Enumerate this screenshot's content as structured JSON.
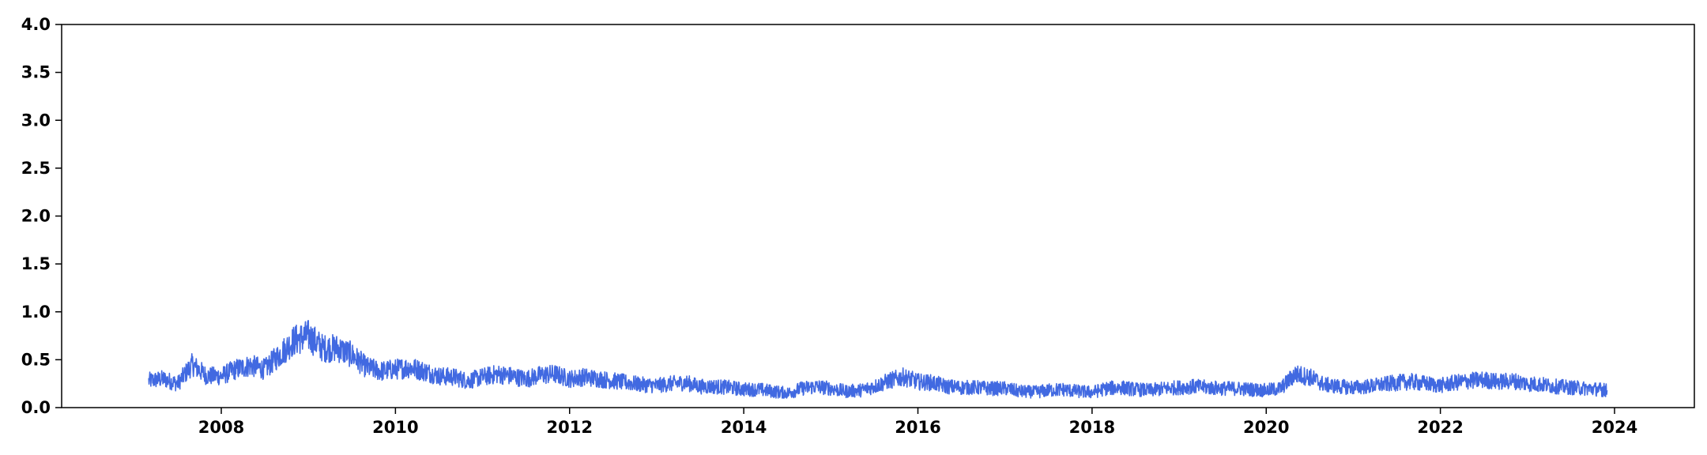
{
  "chart_data": {
    "type": "line",
    "title": "",
    "xlabel": "",
    "ylabel": "",
    "xlim": [
      "2006-03-01",
      "2024-12-01"
    ],
    "ylim": [
      0,
      4.0
    ],
    "grid": false,
    "legend": "none",
    "x_ticks": [
      "2008",
      "2010",
      "2012",
      "2014",
      "2016",
      "2018",
      "2020",
      "2022",
      "2024"
    ],
    "y_ticks": [
      "0.0",
      "0.5",
      "1.0",
      "1.5",
      "2.0",
      "2.5",
      "3.0",
      "3.5",
      "4.0"
    ],
    "series": [
      {
        "color": "#4169e1",
        "x": [
          "2007-03",
          "2007-05",
          "2007-07",
          "2007-09",
          "2007-11",
          "2008-01",
          "2008-03",
          "2008-05",
          "2008-07",
          "2008-09",
          "2008-11",
          "2009-01",
          "2009-03",
          "2009-05",
          "2009-07",
          "2009-09",
          "2009-11",
          "2010-01",
          "2010-03",
          "2010-05",
          "2010-07",
          "2010-09",
          "2010-11",
          "2011-01",
          "2011-03",
          "2011-05",
          "2011-07",
          "2011-09",
          "2011-11",
          "2012-01",
          "2012-03",
          "2012-05",
          "2012-07",
          "2012-09",
          "2012-11",
          "2013-01",
          "2013-03",
          "2013-05",
          "2013-07",
          "2013-09",
          "2013-11",
          "2014-01",
          "2014-03",
          "2014-05",
          "2014-07",
          "2014-09",
          "2014-11",
          "2015-01",
          "2015-03",
          "2015-05",
          "2015-07",
          "2015-09",
          "2015-11",
          "2016-01",
          "2016-03",
          "2016-05",
          "2016-07",
          "2016-09",
          "2016-11",
          "2017-01",
          "2017-03",
          "2017-05",
          "2017-07",
          "2017-09",
          "2017-11",
          "2018-01",
          "2018-03",
          "2018-05",
          "2018-07",
          "2018-09",
          "2018-11",
          "2019-01",
          "2019-03",
          "2019-05",
          "2019-07",
          "2019-09",
          "2019-11",
          "2020-01",
          "2020-03",
          "2020-05",
          "2020-07",
          "2020-09",
          "2020-11",
          "2021-01",
          "2021-03",
          "2021-05",
          "2021-07",
          "2021-09",
          "2021-11",
          "2022-01",
          "2022-03",
          "2022-05",
          "2022-07",
          "2022-09",
          "2022-11",
          "2023-01",
          "2023-03",
          "2023-05",
          "2023-07",
          "2023-09",
          "2023-11",
          "2023-12"
        ],
        "y": [
          0.28,
          0.3,
          0.25,
          0.45,
          0.33,
          0.33,
          0.4,
          0.44,
          0.4,
          0.55,
          0.7,
          0.75,
          0.62,
          0.62,
          0.55,
          0.42,
          0.38,
          0.4,
          0.42,
          0.38,
          0.33,
          0.32,
          0.28,
          0.32,
          0.35,
          0.33,
          0.3,
          0.34,
          0.35,
          0.3,
          0.32,
          0.3,
          0.28,
          0.26,
          0.24,
          0.23,
          0.25,
          0.26,
          0.22,
          0.22,
          0.21,
          0.19,
          0.19,
          0.17,
          0.15,
          0.2,
          0.22,
          0.2,
          0.17,
          0.18,
          0.22,
          0.28,
          0.32,
          0.27,
          0.26,
          0.22,
          0.21,
          0.21,
          0.2,
          0.2,
          0.17,
          0.16,
          0.18,
          0.19,
          0.17,
          0.16,
          0.2,
          0.21,
          0.19,
          0.18,
          0.2,
          0.21,
          0.22,
          0.21,
          0.2,
          0.2,
          0.19,
          0.18,
          0.2,
          0.35,
          0.32,
          0.24,
          0.22,
          0.21,
          0.22,
          0.24,
          0.26,
          0.27,
          0.25,
          0.23,
          0.26,
          0.28,
          0.29,
          0.27,
          0.28,
          0.25,
          0.24,
          0.22,
          0.21,
          0.2,
          0.19,
          0.18
        ]
      }
    ]
  }
}
